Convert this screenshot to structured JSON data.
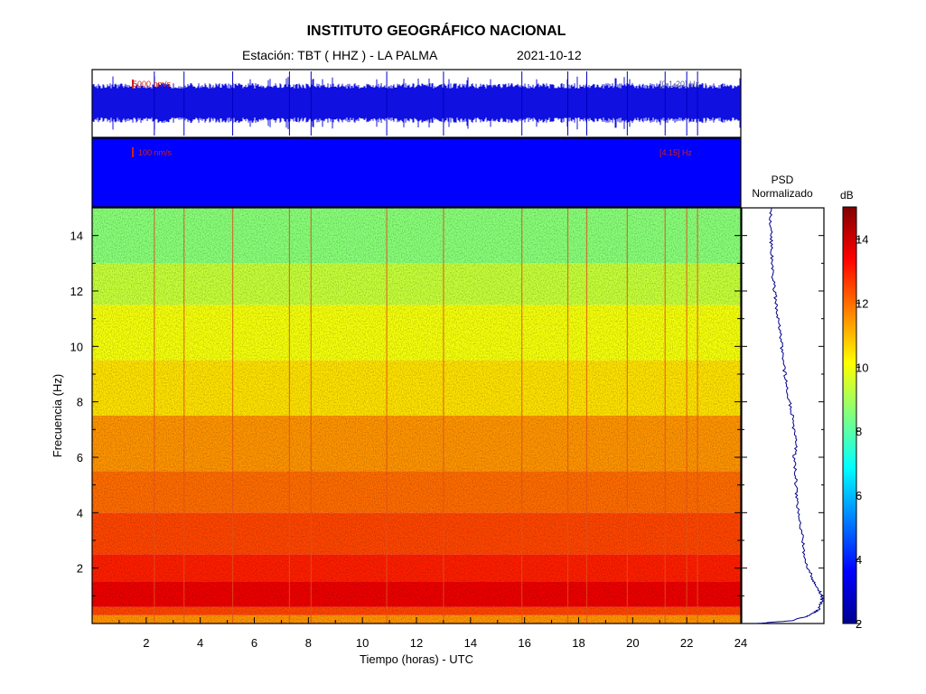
{
  "header": {
    "title": "INSTITUTO GEOGRÁFICO NACIONAL",
    "station": "Estación:  TBT ( HHZ ) - LA PALMA",
    "date": "2021-10-12"
  },
  "traces": {
    "top_scale": "5000 nm/s",
    "top_band": "[0.1-20] Hz",
    "bottom_scale": "100 nm/s",
    "bottom_band": "[4.15] Hz"
  },
  "psd_panel": {
    "title_line1": "PSD",
    "title_line2": "Normalizado"
  },
  "colorbar": {
    "label": "dB",
    "range": [
      2,
      15
    ],
    "ticks": [
      2,
      4,
      6,
      8,
      10,
      12,
      14
    ],
    "colors": [
      "#00008f",
      "#0000ff",
      "#0080ff",
      "#00ffff",
      "#80ff80",
      "#ffff00",
      "#ff8000",
      "#ff0000",
      "#800000"
    ]
  },
  "chart_data": {
    "type": "heatmap",
    "xlabel": "Tiempo (horas) - UTC",
    "ylabel": "Frecuencia  (Hz)",
    "xlim": [
      0,
      24
    ],
    "ylim": [
      0,
      15
    ],
    "xticks": [
      2,
      4,
      6,
      8,
      10,
      12,
      14,
      16,
      18,
      20,
      22,
      24
    ],
    "yticks": [
      2,
      4,
      6,
      8,
      10,
      12,
      14
    ],
    "spectrogram_bands": [
      {
        "f0": 0.0,
        "f1": 0.3,
        "db": 11.5
      },
      {
        "f0": 0.3,
        "f1": 0.6,
        "db": 12.5
      },
      {
        "f0": 0.6,
        "f1": 1.5,
        "db": 13.6
      },
      {
        "f0": 1.5,
        "f1": 2.5,
        "db": 13.0
      },
      {
        "f0": 2.5,
        "f1": 4.0,
        "db": 12.5
      },
      {
        "f0": 4.0,
        "f1": 5.5,
        "db": 12.0
      },
      {
        "f0": 5.5,
        "f1": 7.5,
        "db": 11.5
      },
      {
        "f0": 7.5,
        "f1": 9.5,
        "db": 10.5
      },
      {
        "f0": 9.5,
        "f1": 11.5,
        "db": 10.0
      },
      {
        "f0": 11.5,
        "f1": 13.0,
        "db": 9.4
      },
      {
        "f0": 13.0,
        "f1": 15.0,
        "db": 8.6
      }
    ],
    "transient_events_hours": [
      2.3,
      3.4,
      5.2,
      7.3,
      8.1,
      10.9,
      13.0,
      15.9,
      17.6,
      18.3,
      19.8,
      21.2,
      22.0,
      22.4
    ],
    "psd_curve": {
      "freq": [
        0.0,
        0.1,
        0.3,
        0.5,
        0.8,
        1.0,
        1.3,
        1.6,
        2.0,
        2.5,
        3.0,
        3.5,
        4.0,
        4.5,
        5.0,
        5.5,
        6.0,
        6.5,
        7.0,
        7.5,
        8.0,
        8.5,
        9.0,
        9.5,
        10.0,
        10.5,
        11.0,
        11.5,
        12.0,
        12.5,
        13.0,
        13.5,
        14.0,
        14.5,
        15.0
      ],
      "value": [
        0.15,
        0.6,
        0.85,
        0.95,
        0.99,
        1.0,
        0.93,
        0.88,
        0.82,
        0.77,
        0.75,
        0.72,
        0.7,
        0.68,
        0.66,
        0.66,
        0.64,
        0.67,
        0.63,
        0.62,
        0.58,
        0.55,
        0.52,
        0.5,
        0.48,
        0.46,
        0.43,
        0.41,
        0.39,
        0.37,
        0.36,
        0.35,
        0.34,
        0.34,
        0.35
      ]
    }
  }
}
